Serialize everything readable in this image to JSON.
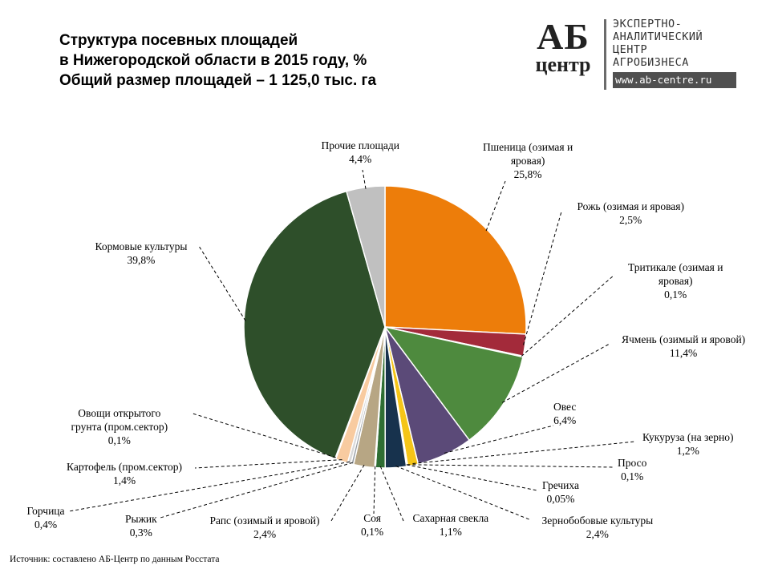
{
  "title": {
    "line1": "Структура посевных площадей",
    "line2": "в Нижегородской области в 2015 году, %",
    "line3": "Общий размер площадей – 1 125,0 тыс. га"
  },
  "logo": {
    "mark_top": "АБ",
    "mark_bottom": "центр",
    "text_line1": "ЭКСПЕРТНО-",
    "text_line2": "АНАЛИТИЧЕСКИЙ",
    "text_line3": "ЦЕНТР",
    "text_line4": "АГРОБИЗНЕСА",
    "url": "www.ab-centre.ru"
  },
  "source": "Источник: составлено АБ-Центр по данным Росстата",
  "chart_data": {
    "type": "pie",
    "title": "Структура посевных площадей в Нижегородской области в 2015 году, %",
    "subtitle": "Общий размер площадей – 1 125,0 тыс. га",
    "start": "12 o'clock, clockwise",
    "slices": [
      {
        "name": "Пшеница (озимая и яровая)",
        "value": 25.8,
        "value_label": "25,8%",
        "color": "#ED7D0A"
      },
      {
        "name": "Рожь (озимая и яровая)",
        "value": 2.5,
        "value_label": "2,5%",
        "color": "#A32A3A"
      },
      {
        "name": "Тритикале (озимая и яровая)",
        "value": 0.1,
        "value_label": "0,1%",
        "color": "#8DB3E2"
      },
      {
        "name": "Ячмень (озимый и яровой)",
        "value": 11.4,
        "value_label": "11,4%",
        "color": "#4E8A3E"
      },
      {
        "name": "Овес",
        "value": 6.4,
        "value_label": "6,4%",
        "color": "#5B4A78"
      },
      {
        "name": "Кукуруза (на зерно)",
        "value": 1.2,
        "value_label": "1,2%",
        "color": "#F5C518"
      },
      {
        "name": "Просо",
        "value": 0.1,
        "value_label": "0,1%",
        "color": "#E8D8A8"
      },
      {
        "name": "Гречиха",
        "value": 0.05,
        "value_label": "0,05%",
        "color": "#1F5F7A"
      },
      {
        "name": "Зернобобовые культуры",
        "value": 2.4,
        "value_label": "2,4%",
        "color": "#17324D"
      },
      {
        "name": "Сахарная свекла",
        "value": 1.1,
        "value_label": "1,1%",
        "color": "#2F6E33"
      },
      {
        "name": "Соя",
        "value": 0.1,
        "value_label": "0,1%",
        "color": "#8B5A2B"
      },
      {
        "name": "Рапс (озимый и яровой)",
        "value": 2.4,
        "value_label": "2,4%",
        "color": "#B7A684"
      },
      {
        "name": "Рыжик",
        "value": 0.3,
        "value_label": "0,3%",
        "color": "#9AA0A6"
      },
      {
        "name": "Горчица",
        "value": 0.4,
        "value_label": "0,4%",
        "color": "#D9D9D9"
      },
      {
        "name": "Картофель (пром.сектор)",
        "value": 1.4,
        "value_label": "1,4%",
        "color": "#F8CBA0"
      },
      {
        "name": "Овощи открытого грунта (пром.сектор)",
        "value": 0.1,
        "value_label": "0,1%",
        "color": "#6E8B3D"
      },
      {
        "name": "Кормовые культуры",
        "value": 39.8,
        "value_label": "39,8%",
        "color": "#2E4F2A"
      },
      {
        "name": "Прочие площади",
        "value": 4.4,
        "value_label": "4,4%",
        "color": "#C0C0C0"
      }
    ]
  }
}
